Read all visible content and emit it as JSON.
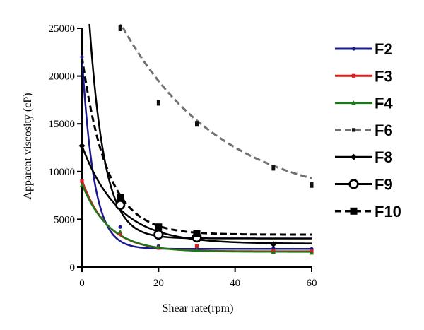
{
  "chart_data": {
    "type": "scatter",
    "title": "",
    "xlabel": "Shear rate(rpm)",
    "ylabel": "Apparent viscosity (cP)",
    "xlim": [
      0,
      60
    ],
    "ylim": [
      0,
      25000
    ],
    "x_ticks": [
      0,
      20,
      40,
      60
    ],
    "y_ticks": [
      0,
      5000,
      10000,
      15000,
      20000,
      25000
    ],
    "x_tick_labels": [
      "0",
      "20",
      "40",
      "60"
    ],
    "y_tick_labels": [
      "0",
      "5000",
      "10000",
      "15000",
      "20000",
      "25000"
    ],
    "grid": false,
    "legend_position": "right",
    "series": [
      {
        "name": "F2",
        "color": "#1a1a8c",
        "dash": "solid",
        "marker": "small-dot",
        "points": [
          [
            0,
            22000
          ],
          [
            10,
            4200
          ],
          [
            20,
            2200
          ],
          [
            30,
            2100
          ],
          [
            50,
            1950
          ],
          [
            60,
            1900
          ]
        ],
        "fit": {
          "model": "exp_decay",
          "plateau": 1900,
          "y0": 22000,
          "k": 0.32
        }
      },
      {
        "name": "F3",
        "color": "#e01b1b",
        "dash": "solid",
        "marker": "small-square",
        "points": [
          [
            0,
            9000
          ],
          [
            10,
            3500
          ],
          [
            20,
            2000
          ],
          [
            30,
            2200
          ],
          [
            50,
            1700
          ],
          [
            60,
            1650
          ]
        ],
        "fit": {
          "model": "exp_decay",
          "plateau": 1650,
          "y0": 9100,
          "k": 0.15
        }
      },
      {
        "name": "F4",
        "color": "#1a7a1a",
        "dash": "solid",
        "marker": "small-triangle",
        "points": [
          [
            0,
            8600
          ],
          [
            10,
            3700
          ],
          [
            20,
            2100
          ],
          [
            30,
            1800
          ],
          [
            50,
            1600
          ],
          [
            60,
            1500
          ]
        ],
        "fit": {
          "model": "exp_decay",
          "plateau": 1600,
          "y0": 8700,
          "k": 0.14
        }
      },
      {
        "name": "F6",
        "color": "#707070",
        "dash": "dashed",
        "marker": "small-square",
        "points": [
          [
            10,
            25000
          ],
          [
            20,
            17200
          ],
          [
            30,
            15000
          ],
          [
            50,
            10400
          ],
          [
            60,
            8600
          ]
        ],
        "fit": {
          "model": "exp_decay",
          "plateau": 6500,
          "y0": 34500,
          "k": 0.0384
        }
      },
      {
        "name": "F8",
        "color": "#000000",
        "dash": "solid",
        "marker": "diamond",
        "points": [
          [
            0,
            12700
          ],
          [
            10,
            6700
          ],
          [
            20,
            3300
          ],
          [
            30,
            3100
          ],
          [
            50,
            2400
          ]
        ],
        "fit": {
          "model": "exp_decay",
          "plateau": 2450,
          "y0": 12700,
          "k": 0.105
        }
      },
      {
        "name": "F9",
        "color": "#000000",
        "dash": "solid",
        "marker": "open-circle",
        "points": [
          [
            10,
            6500
          ],
          [
            20,
            3400
          ],
          [
            30,
            3100
          ]
        ],
        "fit": {
          "model": "exp_decay",
          "plateau": 3000,
          "y0": 39800,
          "k": 0.253
        }
      },
      {
        "name": "F10",
        "color": "#000000",
        "dash": "dashed",
        "marker": "square",
        "points": [
          [
            10,
            7300
          ],
          [
            20,
            4200
          ],
          [
            30,
            3500
          ]
        ],
        "fit": {
          "model": "exp_decay",
          "plateau": 3400,
          "y0": 22000,
          "k": 0.151
        }
      }
    ]
  }
}
